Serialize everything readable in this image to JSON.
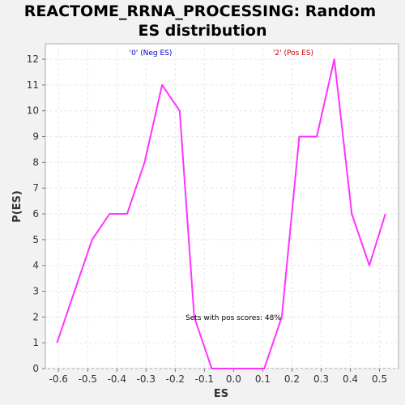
{
  "chart_data": {
    "type": "line",
    "title_line1": "REACTOME_RRNA_PROCESSING: Random",
    "title_line2": "ES distribution",
    "xlabel": "ES",
    "ylabel": "P(ES)",
    "xlim": [
      -0.645,
      0.565
    ],
    "ylim": [
      0,
      12.6
    ],
    "xticks": [
      "-0.6",
      "-0.5",
      "-0.4",
      "-0.3",
      "-0.2",
      "-0.1",
      "0.0",
      "0.1",
      "0.2",
      "0.3",
      "0.4",
      "0.5"
    ],
    "xtick_values": [
      -0.6,
      -0.5,
      -0.4,
      -0.3,
      -0.2,
      -0.1,
      0.0,
      0.1,
      0.2,
      0.3,
      0.4,
      0.5
    ],
    "yticks": [
      "0",
      "1",
      "2",
      "3",
      "4",
      "5",
      "6",
      "7",
      "8",
      "9",
      "10",
      "11",
      "12"
    ],
    "ytick_values": [
      0,
      1,
      2,
      3,
      4,
      5,
      6,
      7,
      8,
      9,
      10,
      11,
      12
    ],
    "grid": true,
    "series": [
      {
        "color": "#ff33ff",
        "x": [
          -0.605,
          -0.545,
          -0.485,
          -0.425,
          -0.365,
          -0.305,
          -0.245,
          -0.185,
          -0.135,
          -0.075,
          -0.015,
          0.045,
          0.105,
          0.165,
          0.225,
          0.285,
          0.345,
          0.405,
          0.465,
          0.52
        ],
        "y": [
          1,
          3,
          5,
          6,
          6,
          8,
          11,
          10,
          2,
          0,
          0,
          0,
          0,
          2,
          9,
          9,
          12,
          6,
          4,
          6
        ]
      }
    ],
    "annotations": {
      "neg_label": "'0' (Neg ES)",
      "neg_color": "#0000cc",
      "pos_label": "'2' (Pos ES)",
      "pos_color": "#cc0000",
      "sets_text": "Sets with pos scores: 48%"
    }
  }
}
